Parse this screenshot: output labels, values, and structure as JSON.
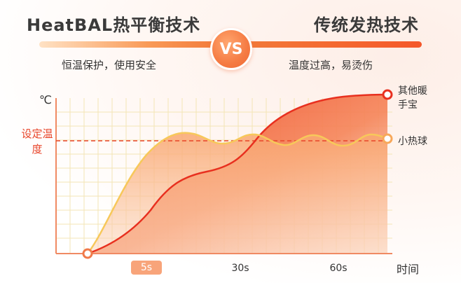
{
  "header": {
    "left_title": "HeatBAL热平衡技术",
    "right_title": "传统发热技术",
    "vs_label": "VS",
    "left_subtitle": "恒温保护，使用安全",
    "right_subtitle": "温度过高，易烫伤"
  },
  "chart": {
    "unit_label": "℃",
    "setting_label": "设定温度",
    "x_axis_label": "时间",
    "ticks": [
      "5s",
      "30s",
      "60s"
    ],
    "legend_other": "其他暖手宝",
    "legend_ball": "小热球"
  },
  "colors": {
    "accent": "#f57b43",
    "dash_line": "#e8452a",
    "red_curve": "#e8301f",
    "yellow_curve": "#f7c85a",
    "grid": "#f3e8b8"
  },
  "chart_data": {
    "type": "line",
    "x_tick_labels": [
      "5s",
      "30s",
      "60s"
    ],
    "ylabel": "℃",
    "xlabel": "时间",
    "annotations": [
      "设定温度"
    ],
    "series": [
      {
        "name": "其他暖手宝",
        "shape": "rises slowly, crosses set temperature, keeps climbing"
      },
      {
        "name": "小热球",
        "shape": "rises fast to set temperature, then oscillates around it"
      }
    ]
  }
}
